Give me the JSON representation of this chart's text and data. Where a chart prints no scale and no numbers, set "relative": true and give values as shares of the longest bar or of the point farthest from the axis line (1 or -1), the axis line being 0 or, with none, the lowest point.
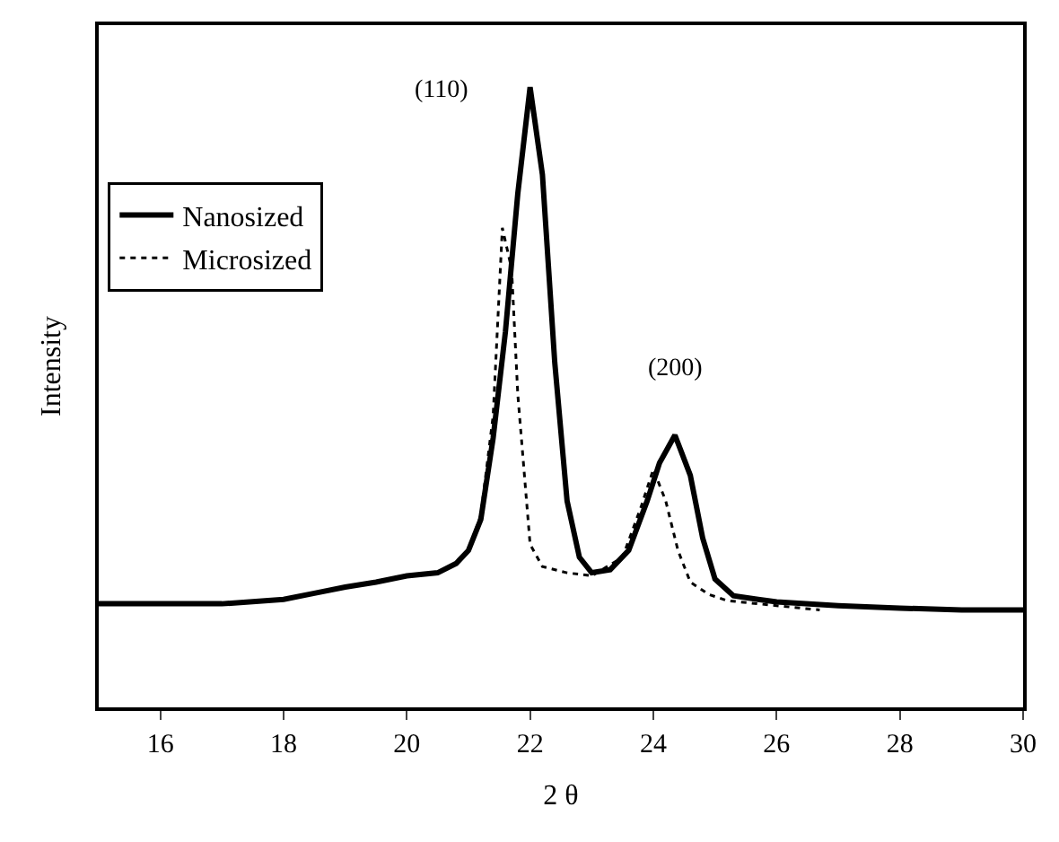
{
  "chart_data": {
    "type": "line",
    "relative": true,
    "xlabel": "2 θ",
    "ylabel": "Intensity",
    "xlim": [
      15,
      30
    ],
    "xticks": [
      16,
      18,
      20,
      22,
      24,
      26,
      28,
      30
    ],
    "legend": "top left",
    "annotations": [
      "(110)",
      "(200)"
    ],
    "series": [
      {
        "name": "Nanosized",
        "color": "#000000",
        "line_style": "solid",
        "x": [
          15,
          16,
          17,
          18,
          18.5,
          19,
          19.5,
          20,
          20.5,
          20.8,
          21,
          21.2,
          21.4,
          21.6,
          21.8,
          22.0,
          22.2,
          22.4,
          22.6,
          22.8,
          23.0,
          23.3,
          23.6,
          23.9,
          24.1,
          24.35,
          24.6,
          24.8,
          25.0,
          25.3,
          25.7,
          26,
          27,
          28,
          29,
          30
        ],
        "values": [
          0.167,
          0.167,
          0.167,
          0.174,
          0.184,
          0.194,
          0.202,
          0.212,
          0.217,
          0.232,
          0.253,
          0.303,
          0.434,
          0.606,
          0.828,
          1.0,
          0.859,
          0.556,
          0.333,
          0.242,
          0.217,
          0.222,
          0.253,
          0.333,
          0.394,
          0.439,
          0.374,
          0.273,
          0.207,
          0.18,
          0.174,
          0.17,
          0.164,
          0.16,
          0.157,
          0.157
        ]
      },
      {
        "name": "Microsized",
        "color": "#000000",
        "line_style": "dotted",
        "x": [
          21.0,
          21.2,
          21.4,
          21.55,
          21.7,
          21.8,
          22.0,
          22.2,
          22.6,
          23.0,
          23.5,
          23.8,
          24.0,
          24.2,
          24.4,
          24.6,
          24.9,
          25.2,
          26,
          26.7
        ],
        "values": [
          0.253,
          0.31,
          0.47,
          0.773,
          0.707,
          0.505,
          0.263,
          0.227,
          0.217,
          0.212,
          0.242,
          0.323,
          0.384,
          0.333,
          0.253,
          0.202,
          0.182,
          0.172,
          0.164,
          0.157
        ]
      }
    ]
  }
}
